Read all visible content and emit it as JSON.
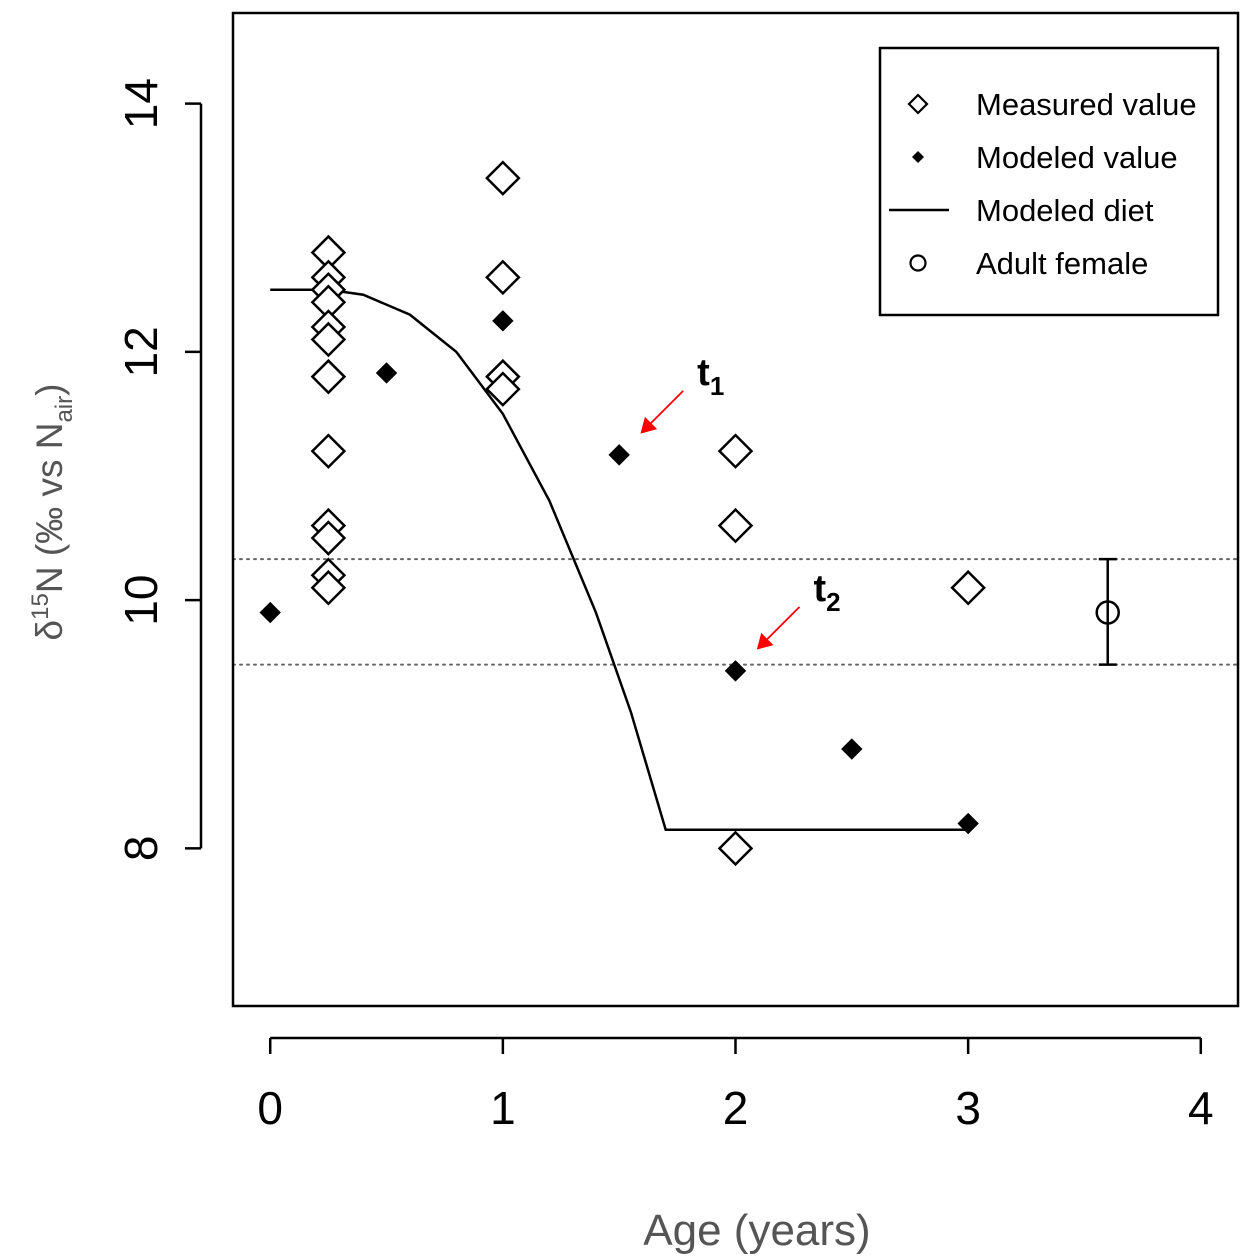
{
  "chart_data": {
    "type": "scatter",
    "title": "",
    "xlabel": "Age (years)",
    "ylabel": {
      "prefix": "δ",
      "sup": "15",
      "mid": "N (‰ vs N",
      "sub": "air",
      "suffix": ")"
    },
    "xlim": [
      -0.16,
      4.16
    ],
    "ylim": [
      6.73,
      14.73
    ],
    "xticks": [
      0,
      1,
      2,
      3,
      4
    ],
    "yticks": [
      8,
      10,
      12,
      14
    ],
    "grid": false,
    "legend": {
      "position": "top-right",
      "entries": [
        {
          "label": "Measured value",
          "marker": "open-diamond"
        },
        {
          "label": "Modeled value",
          "marker": "filled-diamond"
        },
        {
          "label": "Modeled diet",
          "marker": "line"
        },
        {
          "label": "Adult female",
          "marker": "open-circle"
        }
      ]
    },
    "series": [
      {
        "name": "Measured value",
        "marker": "open-diamond",
        "points": [
          [
            0.25,
            12.8
          ],
          [
            0.25,
            12.6
          ],
          [
            0.25,
            12.5
          ],
          [
            0.25,
            12.4
          ],
          [
            0.25,
            12.2
          ],
          [
            0.25,
            12.1
          ],
          [
            0.25,
            11.8
          ],
          [
            0.25,
            11.2
          ],
          [
            0.25,
            10.6
          ],
          [
            0.25,
            10.5
          ],
          [
            0.25,
            10.2
          ],
          [
            0.25,
            10.1
          ],
          [
            1,
            13.4
          ],
          [
            1,
            12.6
          ],
          [
            1,
            11.8
          ],
          [
            1,
            11.7
          ],
          [
            2,
            11.2
          ],
          [
            2,
            10.6
          ],
          [
            2,
            8.0
          ],
          [
            3,
            10.1
          ]
        ]
      },
      {
        "name": "Modeled value",
        "marker": "filled-diamond",
        "points": [
          [
            0,
            9.9
          ],
          [
            0.5,
            11.83
          ],
          [
            1,
            12.25
          ],
          [
            1.5,
            11.17
          ],
          [
            2,
            9.43
          ],
          [
            2.5,
            8.8
          ],
          [
            3,
            8.2
          ]
        ]
      },
      {
        "name": "Modeled diet",
        "marker": "line",
        "points": [
          [
            0,
            12.5
          ],
          [
            0.25,
            12.5
          ],
          [
            0.4,
            12.46
          ],
          [
            0.6,
            12.3
          ],
          [
            0.8,
            12.0
          ],
          [
            1.0,
            11.5
          ],
          [
            1.2,
            10.8
          ],
          [
            1.4,
            9.9
          ],
          [
            1.55,
            9.1
          ],
          [
            1.7,
            8.15
          ],
          [
            3.0,
            8.15
          ]
        ]
      },
      {
        "name": "Adult female",
        "marker": "open-circle",
        "points": [
          [
            3.6,
            9.9
          ]
        ],
        "error": [
          [
            9.48,
            10.33
          ]
        ]
      }
    ],
    "reference_lines": [
      {
        "y": 10.33,
        "style": "dotted"
      },
      {
        "y": 9.48,
        "style": "dotted"
      }
    ],
    "annotations": [
      {
        "label": "t",
        "sub": "1",
        "color": "#000000",
        "arrow_color": "#ff0000",
        "x": 1.5,
        "y": 11.17
      },
      {
        "label": "t",
        "sub": "2",
        "color": "#000000",
        "arrow_color": "#ff0000",
        "x": 2.0,
        "y": 9.43
      }
    ]
  }
}
